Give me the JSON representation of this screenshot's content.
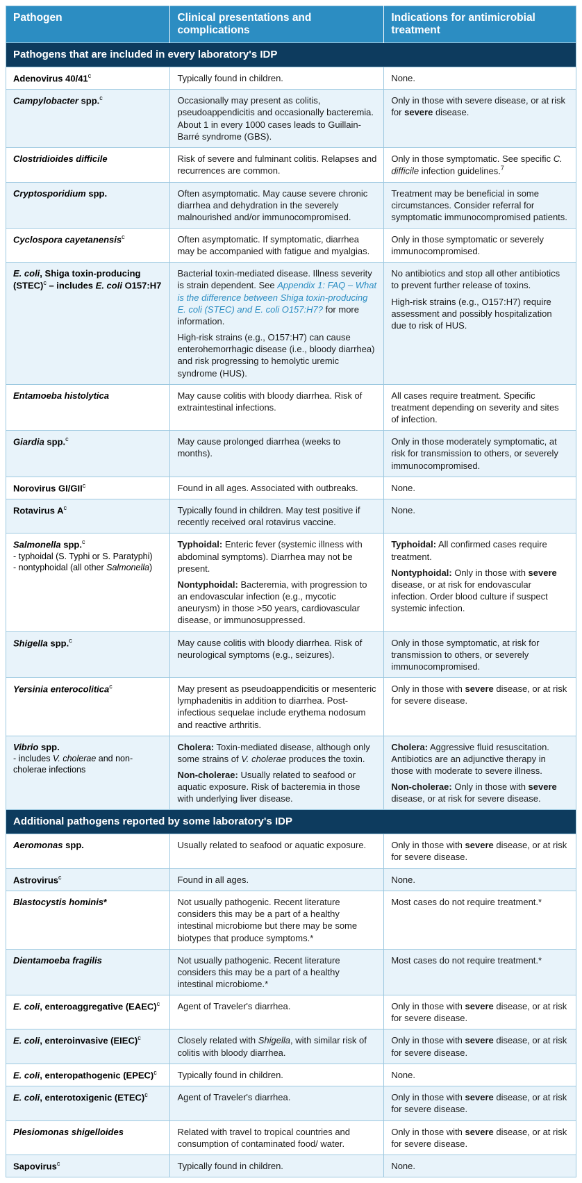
{
  "colors": {
    "header_bg": "#2c8dc2",
    "section_bg": "#0d3b5e",
    "row_alt_bg": "#e8f3fa",
    "row_bg": "#ffffff",
    "border": "#9cc8e0",
    "text": "#1a1a1a",
    "header_text": "#ffffff"
  },
  "columns": [
    "Pathogen",
    "Clinical presentations and complications",
    "Indications for antimicrobial treatment"
  ],
  "sections": [
    {
      "title": "Pathogens that are included in every laboratory's IDP",
      "rows": [
        {
          "pathogen": "<b>Adenovirus 40/41</b><sup class='fn'>c</sup>",
          "clinical": "Typically found in children.",
          "treatment": "None."
        },
        {
          "pathogen": "<b><i>Campylobacter</i> spp.</b><sup class='fn'>c</sup>",
          "clinical": "Occasionally may present as colitis, pseudoappendicitis and occasionally bacteremia. About 1 in every 1000 cases leads to Guillain-Barré syndrome (GBS).",
          "treatment": "Only in those with severe disease, or at risk for <b>severe</b> disease."
        },
        {
          "pathogen": "<b><i>Clostridioides difficile</i></b>",
          "clinical": "Risk of severe and fulminant colitis. Relapses and recurrences are common.",
          "treatment": "Only in those symptomatic. See specific <i>C. difficile</i> infection guidelines.<sup class='fn'>7</sup>"
        },
        {
          "pathogen": "<b><i>Cryptosporidium</i> spp.</b>",
          "clinical": "Often asymptomatic. May cause severe chronic diarrhea and dehydration in the severely malnourished and/or immunocompromised.",
          "treatment": "Treatment may be beneficial in some circumstances. Consider referral for symptomatic immunocompromised patients."
        },
        {
          "pathogen": "<b><i>Cyclospora cayetanensis</i></b><sup class='fn'>c</sup>",
          "clinical": "Often asymptomatic. If symptomatic, diarrhea may be accompanied with fatigue and myalgias.",
          "treatment": "Only in those symptomatic or severely immunocompromised."
        },
        {
          "pathogen": "<b><i>E. coli</i>, Shiga toxin-producing (STEC)</b><sup class='fn'>c</sup> – includes <i>E. coli</i> O157:H7",
          "clinical": "<p>Bacterial toxin-mediated disease. Illness severity is strain dependent. See <i style='color:#2c8dc2'>Appendix 1: FAQ – What is the difference between Shiga toxin-producing E. coli (STEC) and E. coli O157:H7?</i> for more information.</p><p>High-risk strains (e.g., O157:H7) can cause enterohemorrhagic disease (i.e., bloody diarrhea) and risk progressing to hemolytic uremic syndrome (HUS).</p>",
          "treatment": "<p>No antibiotics and stop all other antibiotics to prevent further release of toxins.</p><p>High-risk strains (e.g., O157:H7) require assessment and possibly hospitalization due to risk of HUS.</p>"
        },
        {
          "pathogen": "<b><i>Entamoeba histolytica</i></b>",
          "clinical": "May cause colitis with bloody diarrhea. Risk of extraintestinal infections.",
          "treatment": "All cases require treatment. Specific treatment depending on severity and sites of infection."
        },
        {
          "pathogen": "<b><i>Giardia</i> spp.</b><sup class='fn'>c</sup>",
          "clinical": "May cause prolonged diarrhea (weeks to months).",
          "treatment": "Only in those moderately symptomatic, at risk for transmission to others, or severely immunocompromised."
        },
        {
          "pathogen": "<b>Norovirus GI/GII</b><sup class='fn'>c</sup>",
          "clinical": "Found in all ages. Associated with outbreaks.",
          "treatment": "None."
        },
        {
          "pathogen": "<b>Rotavirus A</b><sup class='fn'>c</sup>",
          "clinical": "Typically found in children. May test positive if recently received oral rotavirus vaccine.",
          "treatment": "None."
        },
        {
          "pathogen": "<b><i>Salmonella</i> spp.</b><sup class='fn'>c</sup><span class='sub'>- typhoidal (S. Typhi or S. Paratyphi)<br>- nontyphoidal (all other <i>Salmonella</i>)</span>",
          "clinical": "<p><b>Typhoidal:</b> Enteric fever (systemic illness with abdominal symptoms). Diarrhea may not be present.</p><p><b>Nontyphoidal:</b> Bacteremia, with progression to an endovascular infection (e.g., mycotic aneurysm) in those &gt;50 years, cardiovascular disease, or immunosuppressed.</p>",
          "treatment": "<p><b>Typhoidal:</b> All confirmed cases require treatment.</p><p><b>Nontyphoidal:</b> Only in those with <b>severe</b> disease, or at risk for endovascular infection. Order blood culture if suspect systemic infection.</p>"
        },
        {
          "pathogen": "<b><i>Shigella</i> spp.</b><sup class='fn'>c</sup>",
          "clinical": "May cause colitis with bloody diarrhea. Risk of neurological symptoms (e.g., seizures).",
          "treatment": "Only in those symptomatic, at risk for transmission to others, or severely immunocompromised."
        },
        {
          "pathogen": "<b><i>Yersinia enterocolitica</i></b><sup class='fn'>c</sup>",
          "clinical": "May present as pseudoappendicitis or mesenteric lymphadenitis in addition to diarrhea. Post-infectious sequelae include erythema nodosum and reactive arthritis.",
          "treatment": "Only in those with <b>severe</b> disease, or at risk for severe disease."
        },
        {
          "pathogen": "<b><i>Vibrio</i> spp.</b><span class='sub'>- includes <i>V. cholerae</i> and non-cholerae infections</span>",
          "clinical": "<p><b>Cholera:</b> Toxin-mediated disease, although only some strains of <i>V. cholerae</i> produces the toxin.</p><p><b>Non-cholerae:</b> Usually related to seafood or aquatic exposure. Risk of bacteremia in those with underlying liver disease.</p>",
          "treatment": "<p><b>Cholera:</b> Aggressive fluid resuscitation. Antibiotics are an adjunctive therapy in those with moderate to severe illness.</p><p><b>Non-cholerae:</b> Only in those with <b>severe</b> disease, or at risk for severe disease.</p>"
        }
      ]
    },
    {
      "title": "Additional pathogens reported by some laboratory's IDP",
      "rows": [
        {
          "pathogen": "<b><i>Aeromonas</i> spp.</b>",
          "clinical": "Usually related to seafood or aquatic exposure.",
          "treatment": "Only in those with <b>severe</b> disease, or at risk for severe disease."
        },
        {
          "pathogen": "<b>Astrovirus</b><sup class='fn'>c</sup>",
          "clinical": "Found in all ages.",
          "treatment": "None."
        },
        {
          "pathogen": "<b><i>Blastocystis hominis</i>*</b>",
          "clinical": "Not usually pathogenic. Recent literature considers this may be a part of a healthy intestinal microbiome but there may be some biotypes that produce symptoms.*",
          "treatment": "Most cases do not require treatment.*"
        },
        {
          "pathogen": "<b><i>Dientamoeba fragilis</i></b>",
          "clinical": "Not usually pathogenic. Recent literature considers this may be a part of a healthy intestinal microbiome.*",
          "treatment": "Most cases do not require treatment.*"
        },
        {
          "pathogen": "<b><i>E. coli</i>, enteroaggregative (EAEC)</b><sup class='fn'>c</sup>",
          "clinical": "Agent of Traveler's diarrhea.",
          "treatment": "Only in those with <b>severe</b> disease, or at risk for severe disease."
        },
        {
          "pathogen": "<b><i>E. coli</i>, enteroinvasive (EIEC)</b><sup class='fn'>c</sup>",
          "clinical": "Closely related with <i>Shigella</i>, with similar risk of colitis with bloody diarrhea.",
          "treatment": "Only in those with <b>severe</b> disease, or at risk for severe disease."
        },
        {
          "pathogen": "<b><i>E. coli</i>, enteropathogenic (EPEC)</b><sup class='fn'>c</sup>",
          "clinical": "Typically found in children.",
          "treatment": "None."
        },
        {
          "pathogen": "<b><i>E. coli</i>, enterotoxigenic (ETEC)</b><sup class='fn'>c</sup>",
          "clinical": "Agent of Traveler's diarrhea.",
          "treatment": "Only in those with <b>severe</b> disease, or at risk for severe disease."
        },
        {
          "pathogen": "<b><i>Plesiomonas shigelloides</i></b>",
          "clinical": "Related with travel to tropical countries and consumption of contaminated food/ water.",
          "treatment": "Only in those with <b>severe</b> disease, or at risk for severe disease."
        },
        {
          "pathogen": "<b>Sapovirus</b><sup class='fn'>c</sup>",
          "clinical": "Typically found in children.",
          "treatment": "None."
        }
      ]
    }
  ]
}
